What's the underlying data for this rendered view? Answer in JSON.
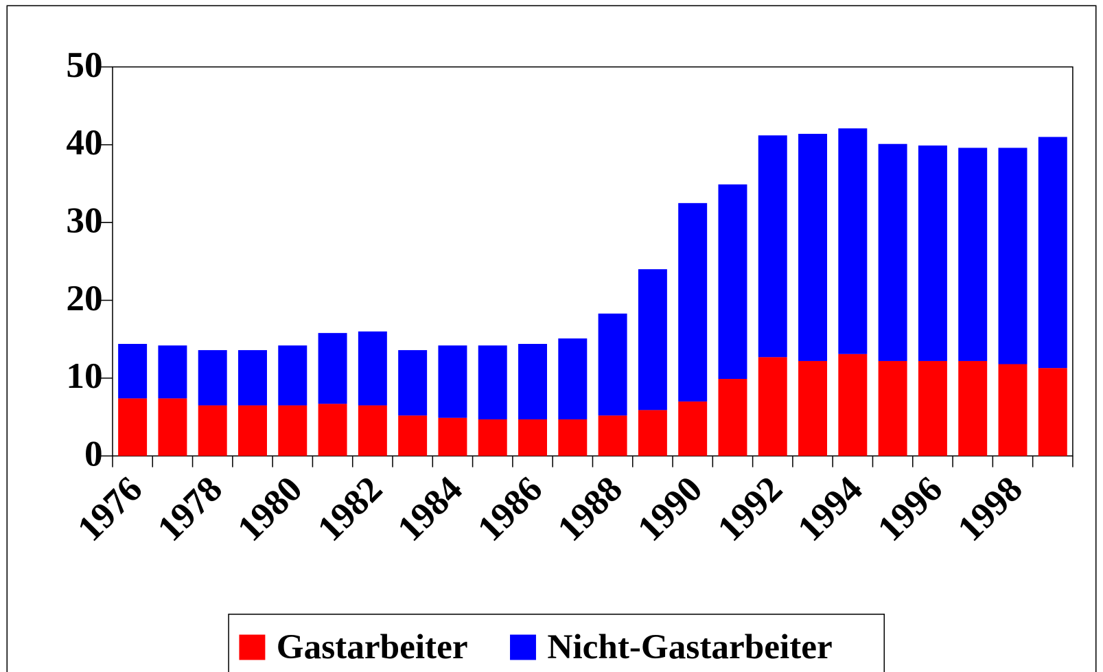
{
  "chart_data": {
    "type": "stacked_bar",
    "categories": [
      "1976",
      null,
      "1978",
      null,
      "1980",
      null,
      "1982",
      null,
      "1984",
      null,
      "1986",
      null,
      "1988",
      null,
      "1990",
      null,
      "1992",
      null,
      "1994",
      null,
      "1996",
      null,
      "1998",
      null
    ],
    "series": [
      {
        "name": "Gastarbeiter",
        "color": "#ff0000",
        "values": [
          7.4,
          7.4,
          6.5,
          6.5,
          6.5,
          6.7,
          6.5,
          5.2,
          4.9,
          4.7,
          4.7,
          4.7,
          5.2,
          5.9,
          7.0,
          9.9,
          12.7,
          12.2,
          13.1,
          12.2,
          12.2,
          12.2,
          11.8,
          11.3
        ]
      },
      {
        "name": "Nicht-Gastarbeiter",
        "color": "#0000ff",
        "values": [
          7.0,
          6.8,
          7.1,
          7.1,
          7.7,
          9.1,
          9.5,
          8.4,
          9.3,
          9.5,
          9.7,
          10.4,
          13.1,
          18.1,
          25.5,
          25.0,
          28.5,
          29.2,
          29.0,
          27.9,
          27.7,
          27.4,
          27.8,
          29.7
        ]
      }
    ],
    "ylim": [
      0,
      50
    ],
    "yticks": [
      0,
      10,
      20,
      30,
      40,
      50
    ],
    "grid": false,
    "legend": "bottom"
  }
}
